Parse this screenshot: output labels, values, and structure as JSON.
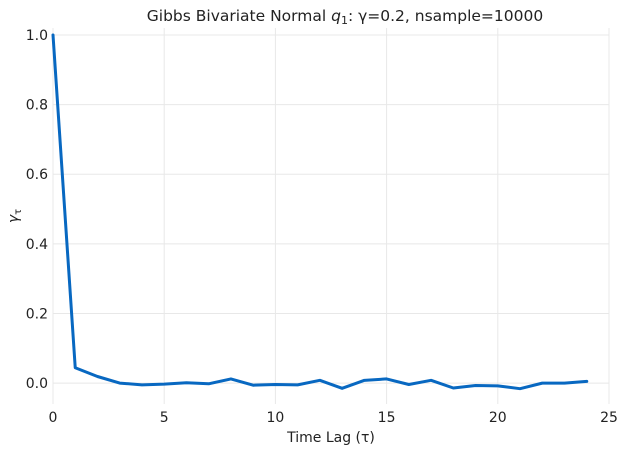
{
  "chart_data": {
    "type": "line",
    "title": "Gibbs Bivariate Normal q₁: γ=0.2, nsample=10000",
    "title_parts": {
      "prefix": "Gibbs Bivariate Normal ",
      "var": "q",
      "sub": "1",
      "suffix": ": γ=0.2, nsample=10000"
    },
    "xlabel": "Time Lag (τ)",
    "ylabel_parts": {
      "var": "γ",
      "sub": "τ"
    },
    "xlim": [
      0,
      25
    ],
    "ylim": [
      -0.06,
      1.02
    ],
    "xticks": [
      0,
      5,
      10,
      15,
      20,
      25
    ],
    "xtick_labels": [
      "0",
      "5",
      "10",
      "15",
      "20",
      "25"
    ],
    "yticks": [
      0.0,
      0.2,
      0.4,
      0.6,
      0.8,
      1.0
    ],
    "ytick_labels": [
      "0.0",
      "0.2",
      "0.4",
      "0.6",
      "0.8",
      "1.0"
    ],
    "grid": true,
    "series": [
      {
        "color": "#0868c1",
        "x": [
          0,
          1,
          2,
          3,
          4,
          5,
          6,
          7,
          8,
          9,
          10,
          11,
          12,
          13,
          14,
          15,
          16,
          17,
          18,
          19,
          20,
          21,
          22,
          23,
          24
        ],
        "y": [
          1.0,
          0.044,
          0.019,
          0.0,
          -0.005,
          -0.003,
          0.001,
          -0.002,
          0.012,
          -0.006,
          -0.004,
          -0.005,
          0.008,
          -0.015,
          0.008,
          0.012,
          -0.004,
          0.008,
          -0.014,
          -0.007,
          -0.008,
          -0.016,
          0.0,
          0.0,
          0.005
        ]
      }
    ]
  }
}
